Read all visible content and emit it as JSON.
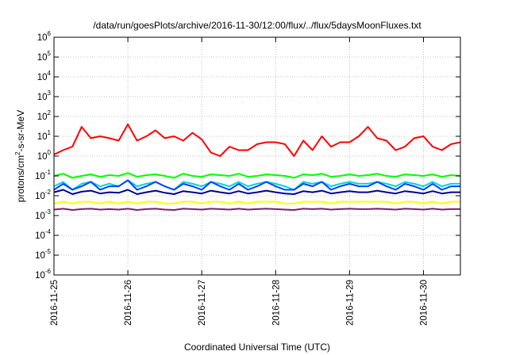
{
  "chart_data": {
    "type": "line",
    "title": "/data/run/goesPlots/archive/2016-11-30/12:00/flux/../flux/5daysMoonFluxes.txt",
    "xlabel": "Coordinated Universal Time (UTC)",
    "ylabel": {
      "base": "protons/cm",
      "exp": "2",
      "rest": "-s-sr-MeV"
    },
    "yscale": "log",
    "ylim": [
      1e-06,
      1000000.0
    ],
    "xlim": [
      "2016-11-25T00:00",
      "2016-11-30T12:00"
    ],
    "grid": true,
    "legend": "none",
    "y_ticks": [
      {
        "base": "10",
        "exp": "-6",
        "value": 1e-06
      },
      {
        "base": "10",
        "exp": "-5",
        "value": 1e-05
      },
      {
        "base": "10",
        "exp": "-4",
        "value": 0.0001
      },
      {
        "base": "10",
        "exp": "-3",
        "value": 0.001
      },
      {
        "base": "10",
        "exp": "-2",
        "value": 0.01
      },
      {
        "base": "10",
        "exp": "-1",
        "value": 0.1
      },
      {
        "base": "10",
        "exp": "0",
        "value": 1
      },
      {
        "base": "10",
        "exp": "1",
        "value": 10
      },
      {
        "base": "10",
        "exp": "2",
        "value": 100
      },
      {
        "base": "10",
        "exp": "3",
        "value": 1000
      },
      {
        "base": "10",
        "exp": "4",
        "value": 10000
      },
      {
        "base": "10",
        "exp": "5",
        "value": 100000
      },
      {
        "base": "10",
        "exp": "6",
        "value": 1000000
      }
    ],
    "x_ticks": [
      {
        "label": "2016-11-25",
        "value": "2016-11-25"
      },
      {
        "label": "2016-11-26",
        "value": "2016-11-26"
      },
      {
        "label": "2016-11-27",
        "value": "2016-11-27"
      },
      {
        "label": "2016-11-28",
        "value": "2016-11-28"
      },
      {
        "label": "2016-11-29",
        "value": "2016-11-29"
      },
      {
        "label": "2016-11-30",
        "value": "2016-11-30"
      }
    ],
    "x": [
      "2016-11-25T00:00",
      "2016-11-25T03:00",
      "2016-11-25T06:00",
      "2016-11-25T09:00",
      "2016-11-25T12:00",
      "2016-11-25T15:00",
      "2016-11-25T18:00",
      "2016-11-25T21:00",
      "2016-11-26T00:00",
      "2016-11-26T03:00",
      "2016-11-26T06:00",
      "2016-11-26T09:00",
      "2016-11-26T12:00",
      "2016-11-26T15:00",
      "2016-11-26T18:00",
      "2016-11-26T21:00",
      "2016-11-27T00:00",
      "2016-11-27T03:00",
      "2016-11-27T06:00",
      "2016-11-27T09:00",
      "2016-11-27T12:00",
      "2016-11-27T15:00",
      "2016-11-27T18:00",
      "2016-11-27T21:00",
      "2016-11-28T00:00",
      "2016-11-28T03:00",
      "2016-11-28T06:00",
      "2016-11-28T09:00",
      "2016-11-28T12:00",
      "2016-11-28T15:00",
      "2016-11-28T18:00",
      "2016-11-28T21:00",
      "2016-11-29T00:00",
      "2016-11-29T03:00",
      "2016-11-29T06:00",
      "2016-11-29T09:00",
      "2016-11-29T12:00",
      "2016-11-29T15:00",
      "2016-11-29T18:00",
      "2016-11-29T21:00",
      "2016-11-30T00:00",
      "2016-11-30T03:00",
      "2016-11-30T06:00",
      "2016-11-30T09:00",
      "2016-11-30T12:00"
    ],
    "series": [
      {
        "color": "#ff0000",
        "values": [
          1.2,
          2,
          3,
          30,
          8,
          10,
          8,
          6,
          40,
          6,
          10,
          20,
          8,
          10,
          6,
          15,
          7,
          1.5,
          1,
          3,
          2,
          2,
          4,
          5,
          5,
          4,
          1,
          6,
          2,
          10,
          3,
          5,
          5,
          10,
          30,
          8,
          6,
          2,
          3,
          8,
          10,
          3,
          2,
          4,
          5
        ]
      },
      {
        "color": "#00ff00",
        "values": [
          0.1,
          0.13,
          0.08,
          0.1,
          0.12,
          0.09,
          0.11,
          0.1,
          0.14,
          0.09,
          0.11,
          0.12,
          0.1,
          0.08,
          0.13,
          0.1,
          0.09,
          0.12,
          0.11,
          0.1,
          0.13,
          0.09,
          0.1,
          0.12,
          0.11,
          0.1,
          0.08,
          0.12,
          0.11,
          0.13,
          0.09,
          0.1,
          0.12,
          0.1,
          0.11,
          0.13,
          0.1,
          0.09,
          0.12,
          0.11,
          0.1,
          0.12,
          0.09,
          0.11,
          0.1
        ]
      },
      {
        "color": "#00d8d8",
        "values": [
          0.03,
          0.05,
          0.02,
          0.04,
          0.05,
          0.03,
          0.04,
          0.03,
          0.06,
          0.03,
          0.04,
          0.05,
          0.03,
          0.02,
          0.05,
          0.04,
          0.03,
          0.05,
          0.04,
          0.03,
          0.05,
          0.03,
          0.04,
          0.05,
          0.04,
          0.03,
          0.02,
          0.05,
          0.04,
          0.05,
          0.03,
          0.04,
          0.05,
          0.04,
          0.04,
          0.05,
          0.04,
          0.03,
          0.05,
          0.04,
          0.03,
          0.05,
          0.03,
          0.04,
          0.04
        ]
      },
      {
        "color": "#0040ff",
        "values": [
          0.02,
          0.04,
          0.02,
          0.03,
          0.05,
          0.02,
          0.03,
          0.03,
          0.06,
          0.02,
          0.03,
          0.05,
          0.03,
          0.02,
          0.04,
          0.03,
          0.02,
          0.05,
          0.03,
          0.02,
          0.04,
          0.02,
          0.03,
          0.05,
          0.03,
          0.02,
          0.02,
          0.04,
          0.03,
          0.05,
          0.02,
          0.03,
          0.04,
          0.03,
          0.03,
          0.05,
          0.03,
          0.02,
          0.04,
          0.03,
          0.02,
          0.04,
          0.02,
          0.03,
          0.03
        ]
      },
      {
        "color": "#000090",
        "values": [
          0.015,
          0.02,
          0.012,
          0.016,
          0.018,
          0.013,
          0.015,
          0.014,
          0.02,
          0.012,
          0.015,
          0.018,
          0.014,
          0.012,
          0.017,
          0.015,
          0.013,
          0.018,
          0.015,
          0.013,
          0.017,
          0.013,
          0.015,
          0.018,
          0.015,
          0.013,
          0.012,
          0.017,
          0.015,
          0.018,
          0.013,
          0.015,
          0.017,
          0.015,
          0.015,
          0.018,
          0.015,
          0.013,
          0.017,
          0.015,
          0.013,
          0.017,
          0.013,
          0.015,
          0.015
        ]
      },
      {
        "color": "#ffff00",
        "values": [
          0.004,
          0.005,
          0.004,
          0.005,
          0.005,
          0.004,
          0.005,
          0.004,
          0.005,
          0.004,
          0.005,
          0.005,
          0.004,
          0.004,
          0.005,
          0.005,
          0.004,
          0.005,
          0.005,
          0.004,
          0.005,
          0.004,
          0.005,
          0.005,
          0.005,
          0.004,
          0.004,
          0.005,
          0.005,
          0.005,
          0.004,
          0.005,
          0.005,
          0.005,
          0.005,
          0.005,
          0.005,
          0.004,
          0.005,
          0.005,
          0.004,
          0.005,
          0.004,
          0.005,
          0.005
        ]
      },
      {
        "color": "#7a1f6a",
        "values": [
          0.002,
          0.0022,
          0.0019,
          0.0021,
          0.0022,
          0.002,
          0.0021,
          0.002,
          0.0022,
          0.0019,
          0.0021,
          0.0022,
          0.002,
          0.0019,
          0.0022,
          0.0021,
          0.002,
          0.0022,
          0.0021,
          0.002,
          0.0022,
          0.002,
          0.0021,
          0.0022,
          0.0021,
          0.002,
          0.0019,
          0.0022,
          0.0021,
          0.0022,
          0.002,
          0.0021,
          0.0022,
          0.0021,
          0.0021,
          0.0022,
          0.0021,
          0.002,
          0.0022,
          0.0021,
          0.002,
          0.0022,
          0.002,
          0.0021,
          0.0021
        ]
      }
    ]
  }
}
